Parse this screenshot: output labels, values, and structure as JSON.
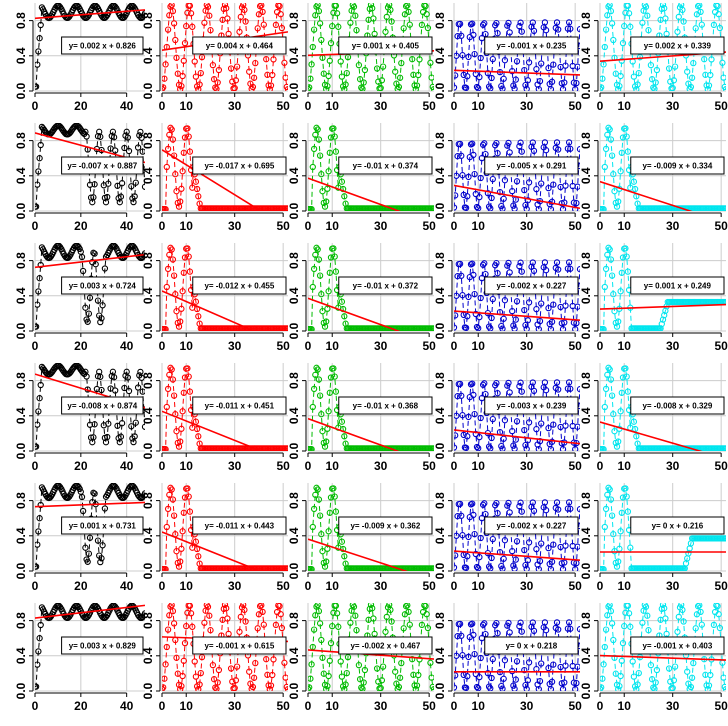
{
  "colors": {
    "series": [
      "#000000",
      "#ff0000",
      "#00bb00",
      "#0000cc",
      "#00e5ee"
    ],
    "fit_line": "#ff0000",
    "grid": "#cccccc",
    "axis": "#000000",
    "background": "#ffffff"
  },
  "chart_data": {
    "type": "scatter",
    "layout": {
      "rows": 6,
      "cols": 5
    },
    "grid": true,
    "ylim": [
      0,
      1
    ],
    "yticks": [
      "0.0",
      "0.4",
      "0.8"
    ],
    "column_axes": [
      {
        "xlim": [
          0,
          48
        ],
        "xticks": [
          "0",
          "20",
          "40"
        ]
      },
      {
        "xlim": [
          0,
          52
        ],
        "xticks": [
          "0",
          "10",
          "30",
          "50"
        ]
      },
      {
        "xlim": [
          0,
          52
        ],
        "xticks": [
          "0",
          "10",
          "30",
          "50"
        ]
      },
      {
        "xlim": [
          0,
          52
        ],
        "xticks": [
          "0",
          "10",
          "30",
          "50"
        ]
      },
      {
        "xlim": [
          0,
          52
        ],
        "xticks": [
          "0",
          "10",
          "30",
          "50"
        ]
      }
    ],
    "panels": [
      [
        {
          "pattern": "sat_osc",
          "fit_slope": 0.002,
          "fit_intercept": 0.826,
          "equation": "y= 0.002 x + 0.826"
        },
        {
          "pattern": "osc",
          "fit_slope": 0.004,
          "fit_intercept": 0.464,
          "equation": "y= 0.004 x + 0.464"
        },
        {
          "pattern": "osc",
          "fit_slope": 0.001,
          "fit_intercept": 0.405,
          "equation": "y= 0.001 x + 0.405"
        },
        {
          "pattern": "osc_fast",
          "fit_slope": -0.001,
          "fit_intercept": 0.235,
          "equation": "y= -0.001 x + 0.235"
        },
        {
          "pattern": "osc",
          "fit_slope": 0.002,
          "fit_intercept": 0.339,
          "equation": "y= 0.002 x + 0.339"
        }
      ],
      [
        {
          "pattern": "sat_then_osc",
          "fit_slope": -0.007,
          "fit_intercept": 0.887,
          "equation": "y= -0.007 x + 0.887"
        },
        {
          "pattern": "pulse_die",
          "fit_slope": -0.017,
          "fit_intercept": 0.695,
          "equation": "y= -0.017 x + 0.695"
        },
        {
          "pattern": "pulse_die",
          "fit_slope": -0.01,
          "fit_intercept": 0.374,
          "equation": "y= -0.01 x + 0.374"
        },
        {
          "pattern": "osc_fast",
          "fit_slope": -0.005,
          "fit_intercept": 0.291,
          "equation": "y= -0.005 x + 0.291"
        },
        {
          "pattern": "pulse_die",
          "fit_slope": -0.009,
          "fit_intercept": 0.334,
          "equation": "y= -0.009 x + 0.334"
        }
      ],
      [
        {
          "pattern": "sat_gap",
          "fit_slope": 0.003,
          "fit_intercept": 0.724,
          "equation": "y= 0.003 x + 0.724"
        },
        {
          "pattern": "pulse_die",
          "fit_slope": -0.012,
          "fit_intercept": 0.455,
          "equation": "y= -0.012 x + 0.455"
        },
        {
          "pattern": "pulse_die",
          "fit_slope": -0.01,
          "fit_intercept": 0.372,
          "equation": "y= -0.01 x + 0.372"
        },
        {
          "pattern": "osc_fast",
          "fit_slope": -0.002,
          "fit_intercept": 0.227,
          "equation": "y= -0.002 x + 0.227"
        },
        {
          "pattern": "pulse_mid",
          "fit_slope": 0.001,
          "fit_intercept": 0.249,
          "equation": "y= 0.001 x + 0.249"
        }
      ],
      [
        {
          "pattern": "sat_then_osc",
          "fit_slope": -0.008,
          "fit_intercept": 0.874,
          "equation": "y= -0.008 x + 0.874"
        },
        {
          "pattern": "pulse_die",
          "fit_slope": -0.011,
          "fit_intercept": 0.451,
          "equation": "y= -0.011 x + 0.451"
        },
        {
          "pattern": "pulse_die",
          "fit_slope": -0.01,
          "fit_intercept": 0.368,
          "equation": "y= -0.01 x + 0.368"
        },
        {
          "pattern": "osc_fast",
          "fit_slope": -0.003,
          "fit_intercept": 0.239,
          "equation": "y= -0.003 x + 0.239"
        },
        {
          "pattern": "pulse_die",
          "fit_slope": -0.008,
          "fit_intercept": 0.329,
          "equation": "y= -0.008 x + 0.329"
        }
      ],
      [
        {
          "pattern": "sat_gap",
          "fit_slope": 0.001,
          "fit_intercept": 0.731,
          "equation": "y= 0.001 x + 0.731"
        },
        {
          "pattern": "pulse_die",
          "fit_slope": -0.011,
          "fit_intercept": 0.443,
          "equation": "y= -0.011 x + 0.443"
        },
        {
          "pattern": "pulse_die",
          "fit_slope": -0.009,
          "fit_intercept": 0.362,
          "equation": "y= -0.009 x + 0.362"
        },
        {
          "pattern": "osc_fast",
          "fit_slope": -0.002,
          "fit_intercept": 0.227,
          "equation": "y= -0.002 x + 0.227"
        },
        {
          "pattern": "pulse_late",
          "fit_slope": 0,
          "fit_intercept": 0.216,
          "equation": "y= 0 x + 0.216"
        }
      ],
      [
        {
          "pattern": "sat_osc",
          "fit_slope": 0.003,
          "fit_intercept": 0.829,
          "equation": "y= 0.003 x + 0.829"
        },
        {
          "pattern": "osc",
          "fit_slope": -0.001,
          "fit_intercept": 0.615,
          "equation": "y= -0.001 x + 0.615"
        },
        {
          "pattern": "osc",
          "fit_slope": -0.002,
          "fit_intercept": 0.467,
          "equation": "y= -0.002 x + 0.467"
        },
        {
          "pattern": "osc_fast",
          "fit_slope": 0,
          "fit_intercept": 0.218,
          "equation": "y= 0 x + 0.218"
        },
        {
          "pattern": "osc",
          "fit_slope": -0.001,
          "fit_intercept": 0.403,
          "equation": "y= -0.001 x + 0.403"
        }
      ]
    ]
  }
}
